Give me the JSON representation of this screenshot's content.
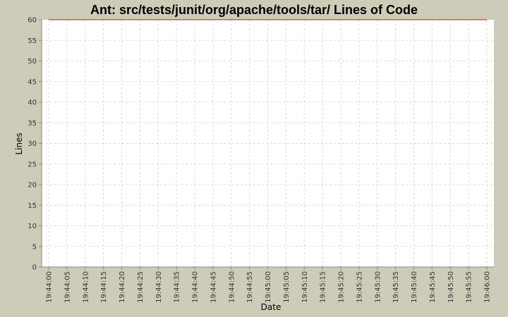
{
  "chart_data": {
    "type": "line",
    "title": "Ant: src/tests/junit/org/apache/tools/tar/ Lines of Code",
    "xlabel": "Date",
    "ylabel": "Lines",
    "ylim": [
      0,
      60
    ],
    "y_ticks": [
      0,
      5,
      10,
      15,
      20,
      25,
      30,
      35,
      40,
      45,
      50,
      55,
      60
    ],
    "x_ticks": [
      "19:44:00",
      "19:44:05",
      "19:44:10",
      "19:44:15",
      "19:44:20",
      "19:44:25",
      "19:44:30",
      "19:44:35",
      "19:44:40",
      "19:44:45",
      "19:44:50",
      "19:44:55",
      "19:45:00",
      "19:45:05",
      "19:45:10",
      "19:45:15",
      "19:45:20",
      "19:45:25",
      "19:45:30",
      "19:45:35",
      "19:45:40",
      "19:45:45",
      "19:45:50",
      "19:45:55",
      "19:46:00"
    ],
    "grid": true,
    "series": [
      {
        "x": [
          "19:44:00",
          "19:46:00"
        ],
        "values": [
          60,
          60
        ],
        "color": "#b02020"
      }
    ]
  }
}
